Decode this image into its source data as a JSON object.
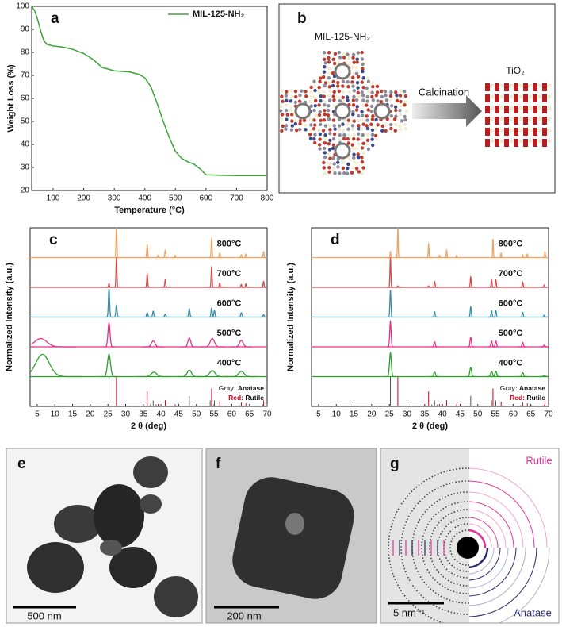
{
  "chart_data": [
    {
      "type": "line",
      "panel_label": "a",
      "x_label": "Temperature (°C)",
      "y_label": "Weight Loss (%)",
      "x": [
        30,
        40,
        50,
        60,
        70,
        80,
        100,
        130,
        160,
        200,
        230,
        260,
        300,
        350,
        380,
        400,
        420,
        440,
        460,
        480,
        500,
        520,
        540,
        560,
        580,
        600,
        650,
        700,
        750,
        800
      ],
      "series": [
        {
          "name": "MIL-125-NH₂",
          "color": "#3aa635",
          "values": [
            100,
            98,
            94,
            89,
            85,
            83.5,
            82.8,
            82.3,
            81.5,
            79.5,
            77,
            73.5,
            72,
            71.5,
            70.5,
            69,
            65,
            58,
            50,
            43,
            37,
            34,
            32.5,
            31.5,
            29.5,
            26.8,
            26.6,
            26.5,
            26.5,
            26.5
          ]
        }
      ],
      "xlim": [
        30,
        800
      ],
      "ylim": [
        20,
        100
      ],
      "xticks": [
        100,
        200,
        300,
        400,
        500,
        600,
        700,
        800
      ],
      "yticks": [
        20,
        30,
        40,
        50,
        60,
        70,
        80,
        90,
        100
      ],
      "legend": "upper right"
    },
    {
      "type": "xrd",
      "panel_label": "c",
      "x_label": "2 θ (deg)",
      "y_label": "Normalized Intensity (a.u.)",
      "xlim": [
        3,
        70
      ],
      "ylim": [
        0,
        6
      ],
      "xticks": [
        5,
        10,
        15,
        20,
        25,
        30,
        35,
        40,
        45,
        50,
        55,
        60,
        65,
        70
      ],
      "series": [
        {
          "name": "800°C",
          "color": "#f4a261",
          "x": [
            27.4,
            36.1,
            39.2,
            41.2,
            44.0,
            54.3,
            56.6,
            62.7,
            64.0,
            69.0
          ],
          "heights": [
            1.0,
            0.42,
            0.08,
            0.25,
            0.07,
            0.62,
            0.15,
            0.1,
            0.12,
            0.2
          ],
          "widths": [
            0.3,
            0.3,
            0.3,
            0.3,
            0.3,
            0.3,
            0.3,
            0.3,
            0.3,
            0.3
          ]
        },
        {
          "name": "700°C",
          "color": "#d24a4a",
          "x": [
            25.3,
            27.4,
            36.1,
            41.2,
            54.3,
            56.6,
            62.7,
            64.0,
            69.0
          ],
          "heights": [
            0.12,
            1.0,
            0.45,
            0.25,
            0.7,
            0.15,
            0.1,
            0.12,
            0.2
          ],
          "widths": [
            0.3,
            0.3,
            0.3,
            0.3,
            0.3,
            0.3,
            0.3,
            0.3,
            0.3
          ]
        },
        {
          "name": "600°C",
          "color": "#3a8fa6",
          "x": [
            25.3,
            27.4,
            36.1,
            37.8,
            41.2,
            48.0,
            54.3,
            55.1,
            62.7,
            69.0
          ],
          "heights": [
            0.95,
            0.4,
            0.15,
            0.2,
            0.1,
            0.28,
            0.3,
            0.22,
            0.15,
            0.08
          ],
          "widths": [
            0.4,
            0.4,
            0.4,
            0.4,
            0.4,
            0.4,
            0.4,
            0.4,
            0.4,
            0.4
          ]
        },
        {
          "name": "500°C",
          "color": "#e8308a",
          "x": [
            6.0,
            25.3,
            37.8,
            48.0,
            54.5,
            62.7
          ],
          "heights": [
            0.28,
            0.8,
            0.2,
            0.3,
            0.28,
            0.22
          ],
          "widths": [
            4,
            0.7,
            1.2,
            0.9,
            1.4,
            1.2
          ]
        },
        {
          "name": "400°C",
          "color": "#2ca02c",
          "x": [
            6.5,
            25.3,
            38.0,
            48.0,
            54.5,
            62.7
          ],
          "heights": [
            0.75,
            0.75,
            0.15,
            0.22,
            0.2,
            0.18
          ],
          "widths": [
            4.5,
            1.0,
            1.8,
            1.4,
            1.8,
            1.8
          ]
        }
      ],
      "references": [
        {
          "key": "Gray:",
          "name": "Anatase",
          "color": "#555555",
          "x": [
            25.3,
            37.0,
            37.8,
            38.6,
            48.0,
            53.9,
            55.1,
            62.1,
            62.7,
            68.8,
            70.0
          ],
          "heights": [
            1,
            0.07,
            0.2,
            0.07,
            0.35,
            0.2,
            0.2,
            0.04,
            0.14,
            0.06,
            0.07
          ]
        },
        {
          "key": "Red:",
          "name": "Rutile",
          "color": "#d0021b",
          "x": [
            27.4,
            36.1,
            39.2,
            41.2,
            44.0,
            54.3,
            56.6,
            62.7,
            64.0,
            69.0
          ],
          "heights": [
            1,
            0.5,
            0.08,
            0.21,
            0.07,
            0.6,
            0.16,
            0.08,
            0.1,
            0.2
          ]
        }
      ]
    },
    {
      "type": "xrd",
      "panel_label": "d",
      "x_label": "2 θ (deg)",
      "y_label": "Normalized Intensity (a.u.)",
      "xlim": [
        3,
        70
      ],
      "ylim": [
        0,
        6
      ],
      "xticks": [
        5,
        10,
        15,
        20,
        25,
        30,
        35,
        40,
        45,
        50,
        55,
        60,
        65,
        70
      ],
      "series": [
        {
          "name": "800°C",
          "color": "#f4a261",
          "x": [
            25.3,
            27.4,
            36.1,
            39.2,
            41.2,
            44.0,
            54.3,
            56.6,
            62.7,
            64.0,
            69.0
          ],
          "heights": [
            0.2,
            1.0,
            0.45,
            0.08,
            0.25,
            0.07,
            0.62,
            0.15,
            0.1,
            0.12,
            0.2
          ],
          "widths": [
            0.25,
            0.25,
            0.25,
            0.25,
            0.25,
            0.25,
            0.25,
            0.25,
            0.25,
            0.25,
            0.25
          ]
        },
        {
          "name": "700°C",
          "color": "#d24a4a",
          "x": [
            25.3,
            27.4,
            36.1,
            37.8,
            48.0,
            53.9,
            55.1,
            62.7,
            68.8
          ],
          "heights": [
            1.0,
            0.05,
            0.05,
            0.2,
            0.35,
            0.25,
            0.25,
            0.18,
            0.08
          ],
          "widths": [
            0.3,
            0.3,
            0.3,
            0.3,
            0.3,
            0.3,
            0.3,
            0.3,
            0.3
          ]
        },
        {
          "name": "600°C",
          "color": "#3a8fa6",
          "x": [
            25.3,
            37.8,
            48.0,
            53.9,
            55.1,
            62.7,
            68.8
          ],
          "heights": [
            0.9,
            0.18,
            0.35,
            0.22,
            0.22,
            0.16,
            0.07
          ],
          "widths": [
            0.35,
            0.35,
            0.35,
            0.35,
            0.35,
            0.35,
            0.35
          ]
        },
        {
          "name": "500°C",
          "color": "#e8308a",
          "x": [
            25.3,
            37.8,
            48.0,
            53.9,
            55.1,
            62.7,
            68.8
          ],
          "heights": [
            0.85,
            0.17,
            0.32,
            0.2,
            0.2,
            0.15,
            0.06
          ],
          "widths": [
            0.45,
            0.45,
            0.45,
            0.45,
            0.45,
            0.45,
            0.45
          ]
        },
        {
          "name": "400°C",
          "color": "#2ca02c",
          "x": [
            25.3,
            37.8,
            48.0,
            53.9,
            55.1,
            62.7,
            68.8
          ],
          "heights": [
            0.8,
            0.15,
            0.3,
            0.18,
            0.18,
            0.13,
            0.05
          ],
          "widths": [
            0.6,
            0.6,
            0.6,
            0.6,
            0.6,
            0.6,
            0.6
          ]
        }
      ],
      "references": [
        {
          "key": "Gray:",
          "name": "Anatase",
          "color": "#555555",
          "x": [
            25.3,
            37.0,
            37.8,
            38.6,
            48.0,
            53.9,
            55.1,
            62.1,
            62.7,
            68.8,
            70.0
          ],
          "heights": [
            1,
            0.07,
            0.2,
            0.07,
            0.35,
            0.2,
            0.2,
            0.04,
            0.14,
            0.06,
            0.07
          ]
        },
        {
          "key": "Red:",
          "name": "Rutile",
          "color": "#d0021b",
          "x": [
            27.4,
            36.1,
            39.2,
            41.2,
            44.0,
            54.3,
            56.6,
            62.7,
            64.0,
            69.0
          ],
          "heights": [
            1,
            0.5,
            0.08,
            0.21,
            0.07,
            0.6,
            0.16,
            0.08,
            0.1,
            0.2
          ]
        }
      ]
    }
  ],
  "diagram": {
    "label": "b",
    "precursor": "MIL-125-NH₂",
    "process": "Calcination",
    "product": "TiO₂"
  },
  "micrographs": [
    {
      "label": "e",
      "scale_bar": "500 nm"
    },
    {
      "label": "f",
      "scale_bar": "200 nm"
    },
    {
      "label": "g",
      "scale_bar": "5 nm⁻¹",
      "upper_rings": "Rutile",
      "lower_rings": "Anatase"
    }
  ]
}
